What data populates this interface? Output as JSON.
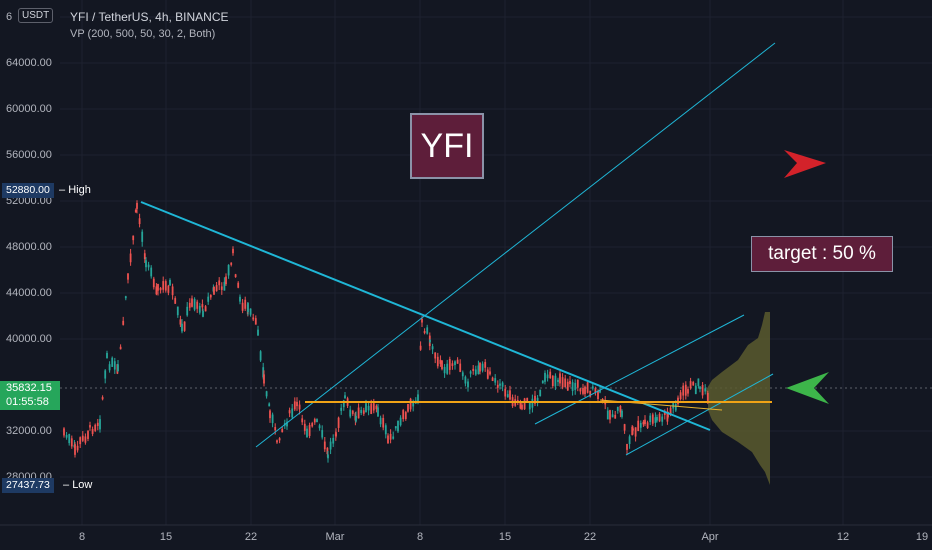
{
  "header": {
    "currency_button": "USDT",
    "symbol_title": "YFI / TetherUS, 4h, BINANCE",
    "indicator": "VP (200, 500, 50, 30, 2, Both)"
  },
  "annotations": {
    "logo_box": "YFI",
    "target_box": "target : 50 %"
  },
  "price_axis": {
    "ticks": [
      "64000.00",
      "60000.00",
      "56000.00",
      "52000.00",
      "48000.00",
      "44000.00",
      "40000.00",
      "32000.00",
      "28000.00"
    ],
    "top_clipped": "6",
    "high_value": "52880.00",
    "high_label": "High",
    "low_value": "27437.73",
    "low_label": "Low",
    "current_price": "35832.15",
    "countdown": "01:55:58"
  },
  "time_axis": {
    "ticks": [
      "8",
      "15",
      "22",
      "Mar",
      "8",
      "15",
      "22",
      "Apr",
      "12",
      "19"
    ]
  },
  "colors": {
    "background": "#131722",
    "up_candle": "#26a69a",
    "down_candle": "#ef5350",
    "trend_line": "#1fb6d6",
    "support_line": "#f0a316",
    "volume_profile": "#5b5a2e",
    "red_arrow": "#d3222a",
    "green_arrow": "#3db54a",
    "annotation_box": "#5e1e3a"
  },
  "icons": [
    "red-arrow-icon",
    "green-arrow-icon"
  ]
}
